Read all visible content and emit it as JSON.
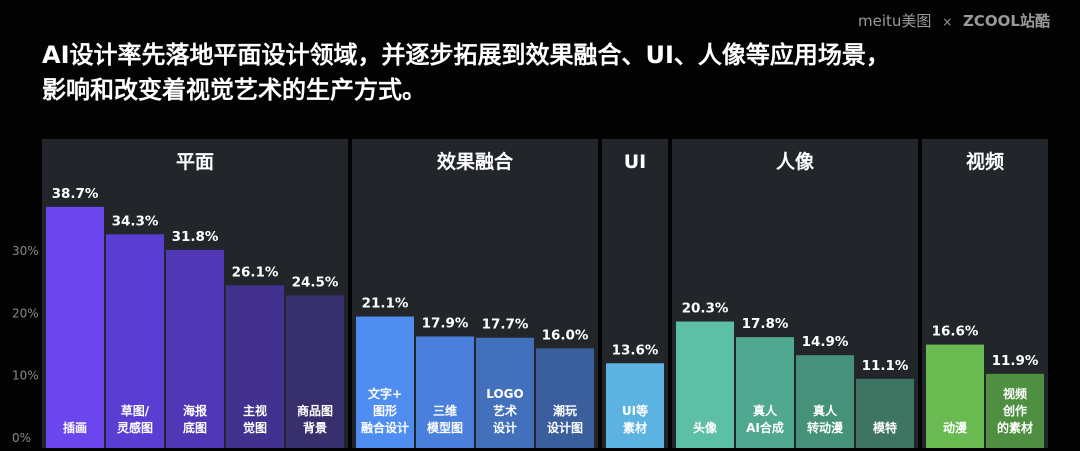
{
  "brand": {
    "meitu": "meitu美图",
    "separator": "×",
    "zcool": "ZCOOL站酷"
  },
  "title_lines": [
    "AI设计率先落地平面设计领域，并逐步拓展到效果融合、UI、人像等应用场景，",
    "影响和改变着视觉艺术的生产方式。"
  ],
  "chart_data": {
    "type": "bar",
    "y_ticks": [
      "0%",
      "10%",
      "20%",
      "30%"
    ],
    "ylim": [
      0,
      40
    ],
    "unit": "%",
    "groups": [
      {
        "name": "平面",
        "categories": [
          {
            "label": [
              "插画"
            ],
            "value": 38.7,
            "label_text": "38.7%",
            "color": "#6b45ee"
          },
          {
            "label": [
              "草图/",
              "灵感图"
            ],
            "value": 34.3,
            "label_text": "34.3%",
            "color": "#5a3ed4"
          },
          {
            "label": [
              "海报",
              "底图"
            ],
            "value": 31.8,
            "label_text": "31.8%",
            "color": "#4f37b5"
          },
          {
            "label": [
              "主视",
              "觉图"
            ],
            "value": 26.1,
            "label_text": "26.1%",
            "color": "#433190"
          },
          {
            "label": [
              "商品图",
              "背景"
            ],
            "value": 24.5,
            "label_text": "24.5%",
            "color": "#38306d"
          }
        ]
      },
      {
        "name": "效果融合",
        "categories": [
          {
            "label": [
              "文字+",
              "图形",
              "融合设计"
            ],
            "value": 21.1,
            "label_text": "21.1%",
            "color": "#4f8ef0"
          },
          {
            "label": [
              "三维",
              "模型图"
            ],
            "value": 17.9,
            "label_text": "17.9%",
            "color": "#4a80dc"
          },
          {
            "label": [
              "LOGO",
              "艺术",
              "设计"
            ],
            "value": 17.7,
            "label_text": "17.7%",
            "color": "#4270bb"
          },
          {
            "label": [
              "潮玩",
              "设计图"
            ],
            "value": 16.0,
            "label_text": "16.0%",
            "color": "#3b5f9c"
          }
        ]
      },
      {
        "name": "UI",
        "categories": [
          {
            "label": [
              "UI等",
              "素材"
            ],
            "value": 13.6,
            "label_text": "13.6%",
            "color": "#5cb3e2"
          }
        ]
      },
      {
        "name": "人像",
        "categories": [
          {
            "label": [
              "头像"
            ],
            "value": 20.3,
            "label_text": "20.3%",
            "color": "#5dbfa5"
          },
          {
            "label": [
              "真人",
              "AI合成"
            ],
            "value": 17.8,
            "label_text": "17.8%",
            "color": "#4fa88f"
          },
          {
            "label": [
              "真人",
              "转动漫"
            ],
            "value": 14.9,
            "label_text": "14.9%",
            "color": "#469179"
          },
          {
            "label": [
              "模特"
            ],
            "value": 11.1,
            "label_text": "11.1%",
            "color": "#3e7462"
          }
        ]
      },
      {
        "name": "视频",
        "categories": [
          {
            "label": [
              "动漫"
            ],
            "value": 16.6,
            "label_text": "16.6%",
            "color": "#6aba52"
          },
          {
            "label": [
              "视频",
              "创作",
              "的素材"
            ],
            "value": 11.9,
            "label_text": "11.9%",
            "color": "#4e8f42"
          }
        ]
      }
    ],
    "panel_color": "#22262b",
    "grid": false,
    "legend": "none"
  }
}
